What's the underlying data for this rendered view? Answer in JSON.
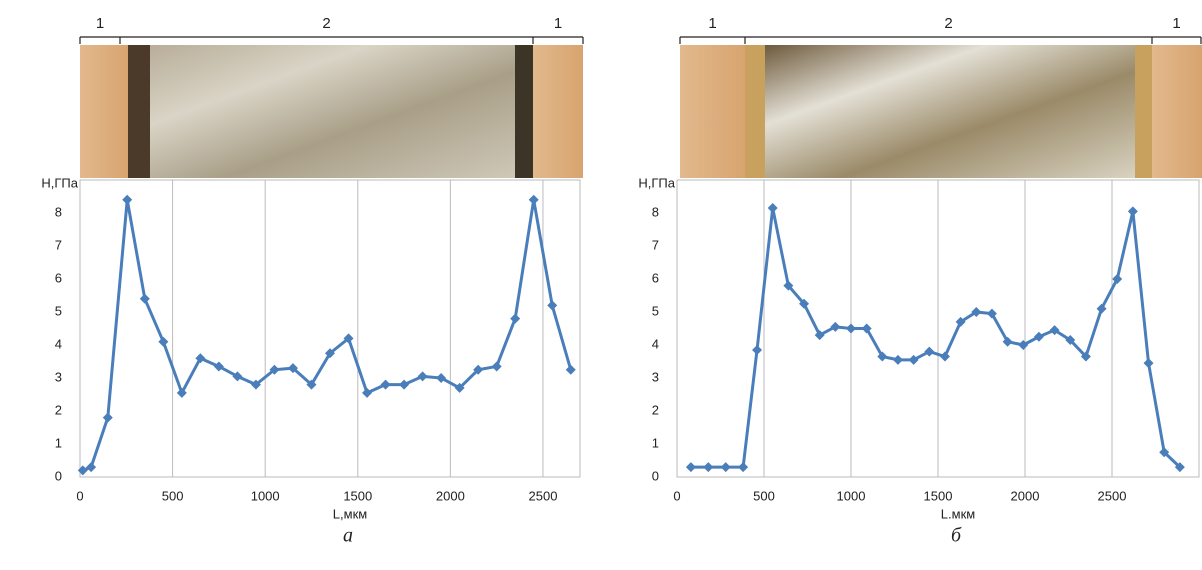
{
  "chart_data": [
    {
      "type": "line",
      "caption": "а",
      "xlabel": "L,мкм",
      "ylabel": "H,ГПа",
      "zones": [
        "1",
        "2",
        "1"
      ],
      "x": [
        15,
        60,
        150,
        255,
        350,
        450,
        550,
        650,
        750,
        850,
        950,
        1050,
        1150,
        1250,
        1350,
        1450,
        1550,
        1650,
        1750,
        1850,
        1950,
        2050,
        2150,
        2250,
        2350,
        2450,
        2550,
        2650
      ],
      "series": [
        {
          "color": "#4a7ebb",
          "values": [
            0.2,
            0.3,
            1.8,
            8.4,
            5.4,
            4.1,
            2.55,
            3.6,
            3.35,
            3.05,
            2.8,
            3.25,
            3.3,
            2.8,
            3.75,
            4.2,
            2.55,
            2.8,
            2.8,
            3.05,
            3.0,
            2.7,
            3.25,
            3.35,
            4.8,
            8.4,
            5.2,
            3.25
          ]
        }
      ],
      "xlim": [
        0,
        2700
      ],
      "ylim": [
        0,
        9
      ],
      "xticks": [
        0,
        500,
        1000,
        1500,
        2000,
        2500
      ],
      "yticks": [
        0,
        1,
        2,
        3,
        4,
        5,
        6,
        7,
        8
      ],
      "grid": "x"
    },
    {
      "type": "line",
      "caption": "б",
      "xlabel": "L.мкм",
      "ylabel": "H,ГПа",
      "zones": [
        "1",
        "2",
        "1"
      ],
      "x": [
        80,
        180,
        280,
        380,
        460,
        550,
        640,
        730,
        820,
        910,
        1000,
        1090,
        1180,
        1270,
        1360,
        1450,
        1540,
        1630,
        1720,
        1810,
        1900,
        1990,
        2080,
        2170,
        2260,
        2350,
        2440,
        2530,
        2620,
        2710,
        2800,
        2890
      ],
      "series": [
        {
          "color": "#4a7ebb",
          "values": [
            0.3,
            0.3,
            0.3,
            0.3,
            3.85,
            8.15,
            5.8,
            5.25,
            4.3,
            4.55,
            4.5,
            4.5,
            3.65,
            3.55,
            3.55,
            3.8,
            3.65,
            4.7,
            5.0,
            4.95,
            4.1,
            4.0,
            4.25,
            4.45,
            4.15,
            3.65,
            5.1,
            6.0,
            8.05,
            3.45,
            0.75,
            0.3
          ]
        }
      ],
      "xlim": [
        0,
        3000
      ],
      "ylim": [
        0,
        9
      ],
      "xticks": [
        0,
        500,
        1000,
        1500,
        2000,
        2500
      ],
      "yticks": [
        0,
        1,
        2,
        3,
        4,
        5,
        6,
        7,
        8
      ],
      "grid": "x"
    }
  ]
}
